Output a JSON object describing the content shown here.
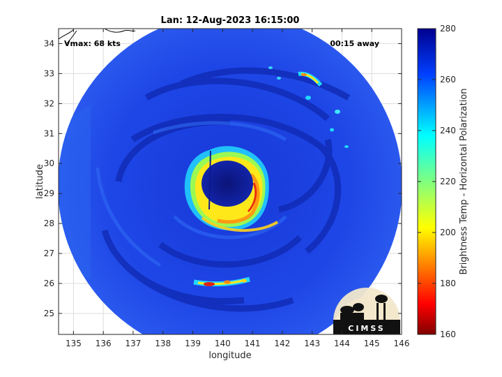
{
  "title": "Lan: 12-Aug-2023 16:15:00",
  "annotations": {
    "vmax": "Vmax: 68 kts",
    "time_away": "00:15 away"
  },
  "axes": {
    "xlabel": "longitude",
    "ylabel": "latitude",
    "xticks": [
      "135",
      "136",
      "137",
      "138",
      "139",
      "140",
      "141",
      "142",
      "143",
      "144",
      "145",
      "146"
    ],
    "yticks": [
      "25",
      "26",
      "27",
      "28",
      "29",
      "30",
      "31",
      "32",
      "33",
      "34"
    ],
    "xlim": [
      134.5,
      146
    ],
    "ylim": [
      24.3,
      34.5
    ],
    "grid": true
  },
  "colorbar": {
    "label": "Brightness Temp - Horizontal Polarization",
    "ticks": [
      "160",
      "180",
      "200",
      "220",
      "240",
      "260",
      "280"
    ],
    "range": [
      160,
      280
    ],
    "colormap": "jet"
  },
  "storm": {
    "name": "Lan",
    "center_lon": 140.0,
    "center_lat": 29.3,
    "swath_radius_deg": 5.7
  },
  "logo": {
    "text": "CIMSS"
  },
  "colors": {
    "background_blue": "#1a3fe0",
    "eye": "#0d1a8a",
    "eyewall_yellow": "#ffe01a",
    "eyewall_red": "#e01a00",
    "outside_swath": "#ffffff"
  }
}
